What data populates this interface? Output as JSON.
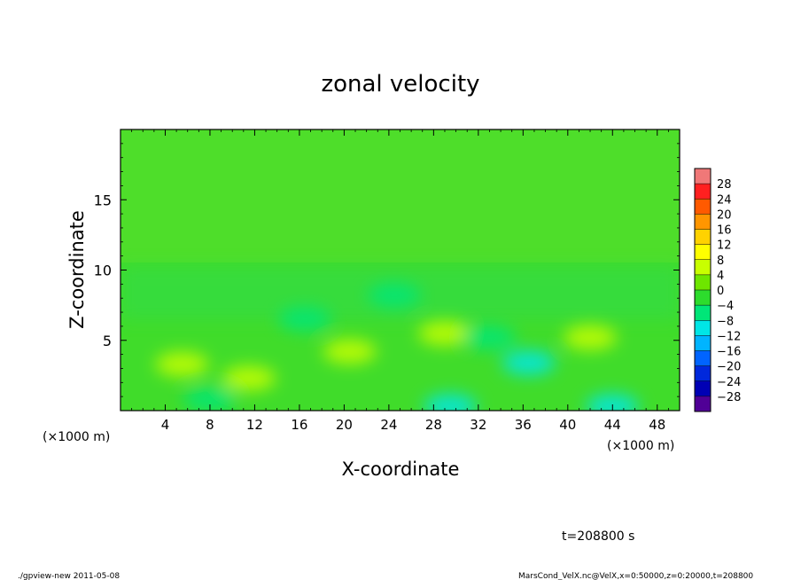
{
  "chart_data": {
    "type": "heatmap",
    "title": "zonal velocity",
    "xlabel": "X-coordinate",
    "ylabel": "Z-coordinate",
    "x_unit_left": "(×1000 m)",
    "x_unit_right": "(×1000 m)",
    "xlim": [
      0,
      50
    ],
    "ylim": [
      0,
      20
    ],
    "x_ticks": [
      4,
      8,
      12,
      16,
      20,
      24,
      28,
      32,
      36,
      40,
      44,
      48
    ],
    "y_ticks": [
      5,
      10,
      15
    ],
    "colorbar": {
      "levels": [
        28,
        24,
        20,
        16,
        12,
        8,
        4,
        0,
        -4,
        -8,
        -12,
        -16,
        -20,
        -24,
        -28
      ],
      "level_labels": [
        "28",
        "24",
        "20",
        "16",
        "12",
        "8",
        "4",
        "0",
        "−4",
        "−8",
        "−12",
        "−16",
        "−20",
        "−24",
        "−28"
      ],
      "colors": [
        "#f07878",
        "#ff2020",
        "#ff5a00",
        "#ff9600",
        "#ffd200",
        "#ffff00",
        "#c8ff00",
        "#6ee600",
        "#2ddc2d",
        "#00e678",
        "#00e6e6",
        "#00b4ff",
        "#0064ff",
        "#0028dc",
        "#0000b4",
        "#500096"
      ]
    },
    "features": [
      {
        "x": 5.5,
        "z": 3.3,
        "value": 6
      },
      {
        "x": 11.5,
        "z": 2.3,
        "value": 5
      },
      {
        "x": 20.5,
        "z": 4.2,
        "value": 5
      },
      {
        "x": 29,
        "z": 5.5,
        "value": 5
      },
      {
        "x": 42,
        "z": 5.2,
        "value": 6
      },
      {
        "x": 36.5,
        "z": 3.4,
        "value": -9
      },
      {
        "x": 33,
        "z": 5.2,
        "value": -8
      },
      {
        "x": 24.5,
        "z": 8.2,
        "value": -6
      },
      {
        "x": 16.5,
        "z": 6.5,
        "value": -5
      },
      {
        "x": 29.5,
        "z": 0.3,
        "value": -12
      },
      {
        "x": 44,
        "z": 0.3,
        "value": -12
      },
      {
        "x": 8,
        "z": 0.8,
        "value": -5
      }
    ]
  },
  "time_label": "t=208800 s",
  "footer_left": "./gpview-new   2011-05-08",
  "footer_right": "MarsCond_VelX.nc@VelX,x=0:50000,z=0:20000,t=208800"
}
